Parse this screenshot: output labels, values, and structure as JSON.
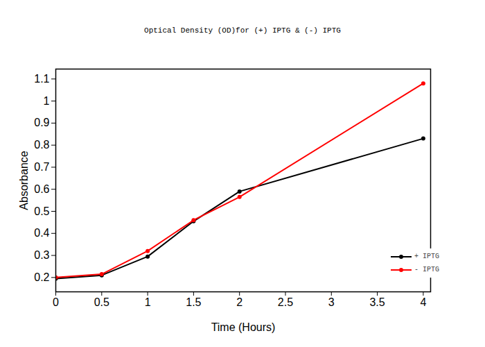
{
  "chart_data": {
    "type": "line",
    "title": "Optical Density (OD)for (+) IPTG & (-) IPTG",
    "x_label": "Time (Hours)",
    "y_label": "Absorbance",
    "x": [
      0,
      0.5,
      1,
      1.5,
      2,
      4
    ],
    "series": [
      {
        "name": "+ IPTG",
        "color": "#000000",
        "values": [
          0.195,
          0.21,
          0.295,
          0.455,
          0.59,
          0.83
        ]
      },
      {
        "name": "- IPTG",
        "color": "#ff0000",
        "values": [
          0.2,
          0.215,
          0.32,
          0.46,
          0.565,
          1.08
        ]
      }
    ],
    "xlim": [
      0,
      4.08
    ],
    "ylim": [
      0.135,
      1.145
    ],
    "xticks": [
      0,
      0.5,
      1,
      1.5,
      2,
      2.5,
      3,
      3.5,
      4
    ],
    "yticks": [
      0.2,
      0.3,
      0.4,
      0.5,
      0.6,
      0.7,
      0.8,
      0.9,
      1,
      1.1
    ],
    "grid": false,
    "legend": "lower right",
    "marker": "circle",
    "line_style": "solid"
  }
}
